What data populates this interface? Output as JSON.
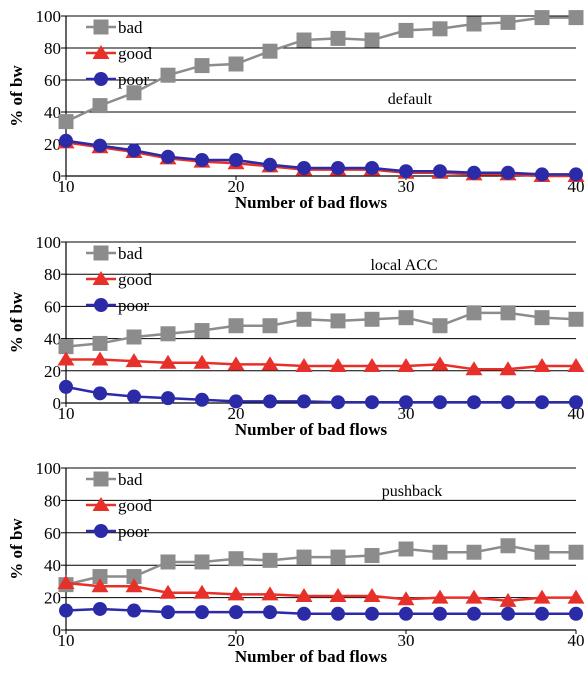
{
  "chart_data": [
    {
      "type": "line",
      "annotation": "default",
      "xlabel": "Number of bad flows",
      "ylabel": "% of bw",
      "xlim": [
        10,
        40
      ],
      "ylim": [
        0,
        100
      ],
      "x_ticks": [
        "10",
        "20",
        "30",
        "40"
      ],
      "y_ticks": [
        "0",
        "20",
        "40",
        "60",
        "80",
        "100"
      ],
      "grid": "horizontal",
      "legend": "top-left",
      "x": [
        10,
        12,
        14,
        16,
        18,
        20,
        22,
        24,
        26,
        28,
        30,
        32,
        34,
        36,
        38,
        40
      ],
      "series": [
        {
          "name": "bad",
          "color": "#8c8c8c",
          "marker": "square",
          "values": [
            34,
            44,
            52,
            63,
            69,
            70,
            78,
            85,
            86,
            85,
            91,
            92,
            95,
            96,
            99,
            99
          ]
        },
        {
          "name": "good",
          "color": "#e8302a",
          "marker": "triangle",
          "values": [
            21,
            18,
            15,
            11,
            9,
            8,
            6,
            4,
            4,
            4,
            2,
            2,
            1,
            1,
            0,
            0
          ]
        },
        {
          "name": "poor",
          "color": "#2b2ba8",
          "marker": "circle",
          "values": [
            22,
            19,
            16,
            12,
            10,
            10,
            7,
            5,
            5,
            5,
            3,
            3,
            2,
            2,
            1,
            1
          ]
        }
      ]
    },
    {
      "type": "line",
      "annotation": "local ACC",
      "xlabel": "Number of bad flows",
      "ylabel": "% of bw",
      "xlim": [
        10,
        40
      ],
      "ylim": [
        0,
        100
      ],
      "x_ticks": [
        "10",
        "20",
        "30",
        "40"
      ],
      "y_ticks": [
        "0",
        "20",
        "40",
        "60",
        "80",
        "100"
      ],
      "grid": "horizontal",
      "legend": "top-left",
      "x": [
        10,
        12,
        14,
        16,
        18,
        20,
        22,
        24,
        26,
        28,
        30,
        32,
        34,
        36,
        38,
        40
      ],
      "series": [
        {
          "name": "bad",
          "color": "#8c8c8c",
          "marker": "square",
          "values": [
            35,
            37,
            41,
            43,
            45,
            48,
            48,
            52,
            51,
            52,
            53,
            48,
            56,
            56,
            53,
            52
          ]
        },
        {
          "name": "good",
          "color": "#e8302a",
          "marker": "triangle",
          "values": [
            27,
            27,
            26,
            25,
            25,
            24,
            24,
            23,
            23,
            23,
            23,
            24,
            21,
            21,
            23,
            23
          ]
        },
        {
          "name": "poor",
          "color": "#2b2ba8",
          "marker": "circle",
          "values": [
            10,
            6,
            4,
            3,
            2,
            1,
            1,
            1,
            0.5,
            0.5,
            0.5,
            0.5,
            0.5,
            0.5,
            0.5,
            0.5
          ]
        }
      ]
    },
    {
      "type": "line",
      "annotation": "pushback",
      "xlabel": "Number of bad flows",
      "ylabel": "% of bw",
      "xlim": [
        10,
        40
      ],
      "ylim": [
        0,
        100
      ],
      "x_ticks": [
        "10",
        "20",
        "30",
        "40"
      ],
      "y_ticks": [
        "0",
        "20",
        "40",
        "60",
        "80",
        "100"
      ],
      "grid": "horizontal",
      "legend": "top-left",
      "x": [
        10,
        12,
        14,
        16,
        18,
        20,
        22,
        24,
        26,
        28,
        30,
        32,
        34,
        36,
        38,
        40
      ],
      "series": [
        {
          "name": "bad",
          "color": "#8c8c8c",
          "marker": "square",
          "values": [
            28,
            33,
            33,
            42,
            42,
            44,
            43,
            45,
            45,
            46,
            50,
            48,
            48,
            52,
            48,
            48
          ]
        },
        {
          "name": "good",
          "color": "#e8302a",
          "marker": "triangle",
          "values": [
            29,
            27,
            27,
            23,
            23,
            22,
            22,
            21,
            21,
            21,
            19,
            20,
            20,
            18,
            20,
            20
          ]
        },
        {
          "name": "poor",
          "color": "#2b2ba8",
          "marker": "circle",
          "values": [
            12,
            13,
            12,
            11,
            11,
            11,
            11,
            10,
            10,
            10,
            10,
            10,
            10,
            10,
            10,
            10
          ]
        }
      ]
    }
  ]
}
